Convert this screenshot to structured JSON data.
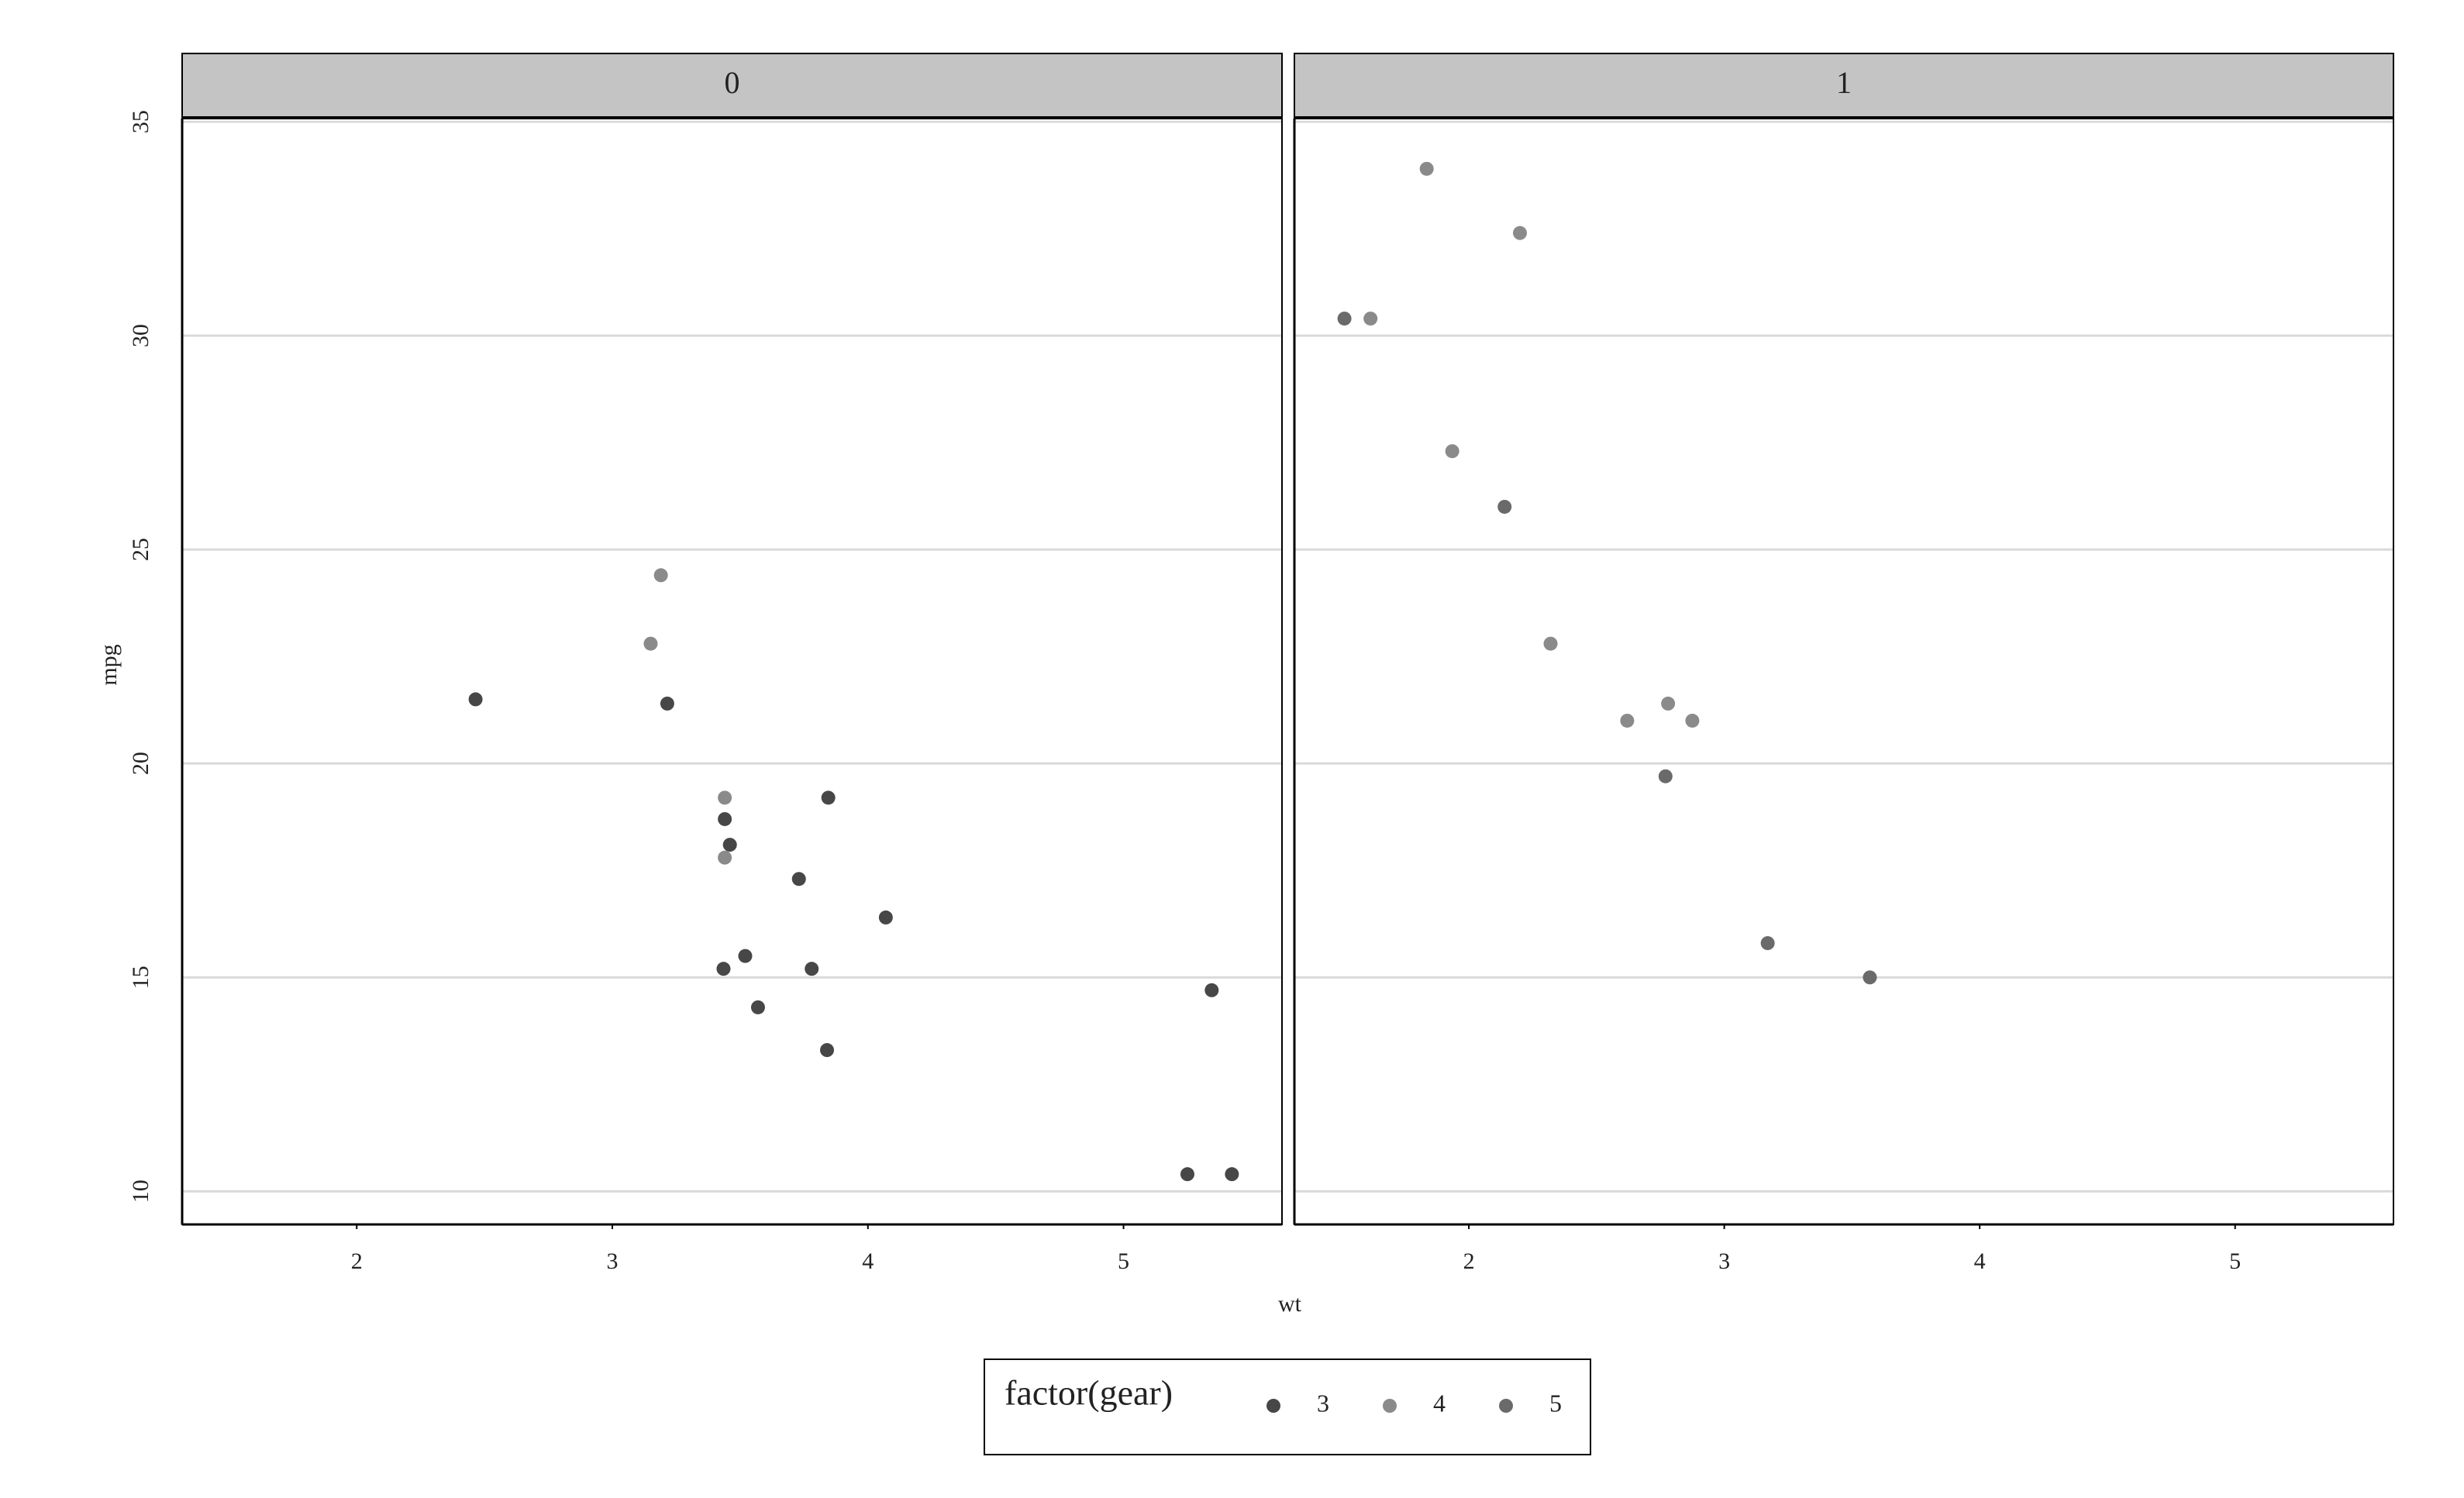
{
  "chart_data": {
    "type": "scatter",
    "x_label": "wt",
    "y_label": "mpg",
    "legend_title": "factor(gear)",
    "facets": [
      "0",
      "1"
    ],
    "xlim": [
      1.317,
      5.62
    ],
    "ylim": [
      9.225,
      35.075
    ],
    "xticks": [
      2,
      3,
      4,
      5
    ],
    "yticks": [
      10,
      15,
      20,
      25,
      30,
      35
    ],
    "grid": true,
    "series": [
      {
        "name": "3",
        "color": "#474747",
        "data": [
          {
            "x": [
              3.215,
              3.44,
              3.46,
              3.57,
              4.07,
              3.73,
              3.78,
              5.25,
              5.424,
              5.345,
              2.465,
              3.52,
              3.435,
              3.84,
              3.845
            ],
            "values": [
              21.4,
              18.7,
              18.1,
              14.3,
              16.4,
              17.3,
              15.2,
              10.4,
              10.4,
              14.7,
              21.5,
              15.5,
              15.2,
              13.3,
              19.2
            ]
          },
          {
            "x": [],
            "values": []
          }
        ]
      },
      {
        "name": "4",
        "color": "#8a8a8a",
        "data": [
          {
            "x": [
              3.19,
              3.15,
              3.44,
              3.44
            ],
            "values": [
              24.4,
              22.8,
              19.2,
              17.8
            ]
          },
          {
            "x": [
              2.62,
              2.875,
              2.32,
              2.2,
              1.615,
              1.835,
              1.935,
              2.78
            ],
            "values": [
              21,
              21,
              22.8,
              32.4,
              30.4,
              33.9,
              27.3,
              21.4
            ]
          }
        ]
      },
      {
        "name": "5",
        "color": "#6a6a6a",
        "data": [
          {
            "x": [],
            "values": []
          },
          {
            "x": [
              2.14,
              1.513,
              3.17,
              2.77,
              3.57
            ],
            "values": [
              26,
              30.4,
              15.8,
              19.7,
              15
            ]
          }
        ]
      }
    ]
  }
}
